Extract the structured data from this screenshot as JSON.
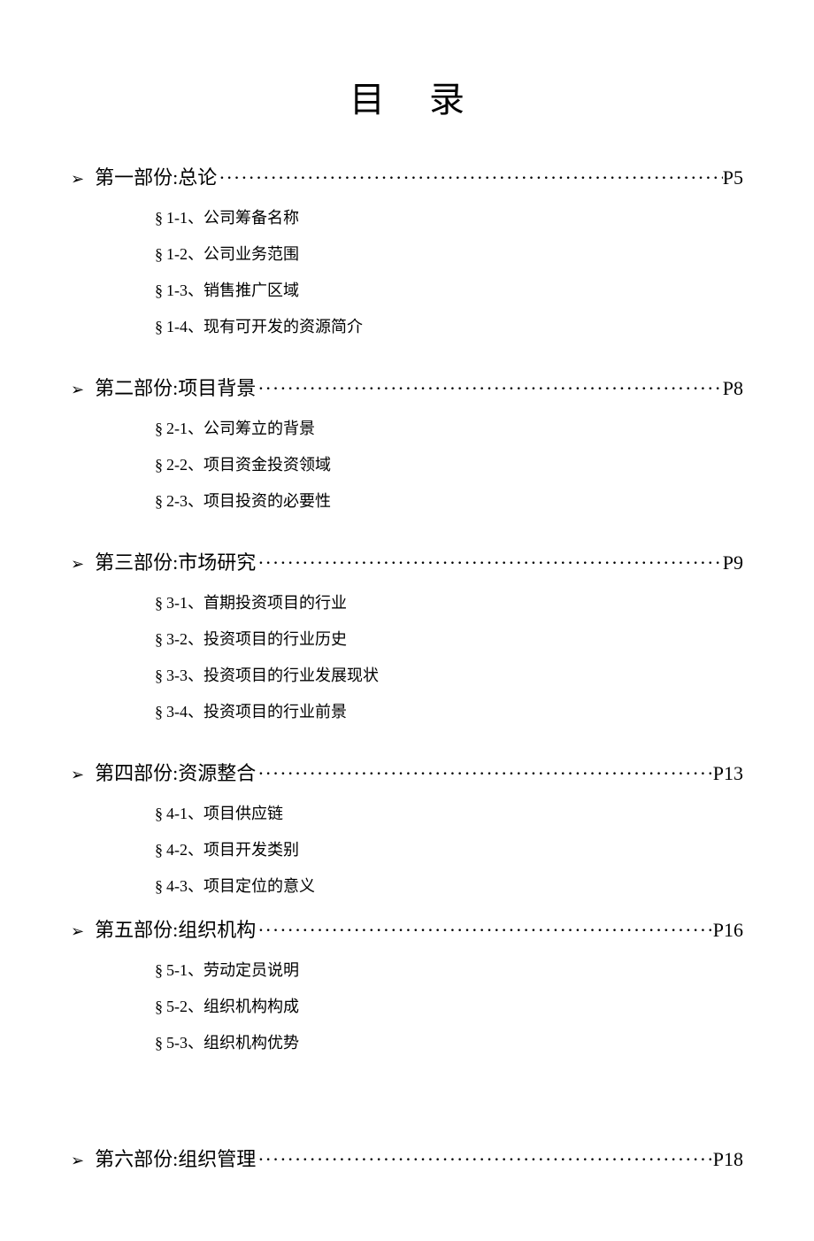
{
  "title": "目录",
  "leader_char": "·",
  "bullet_char": "➢",
  "section_mark": "§",
  "colors": {
    "background": "#ffffff",
    "text": "#000000"
  },
  "typography": {
    "title_fontsize": 40,
    "section_fontsize": 22,
    "sub_fontsize": 18,
    "font_family": "SimSun"
  },
  "sections": [
    {
      "label": "第一部份:总论",
      "page": "P5",
      "compact": false,
      "large_gap": false,
      "items": [
        "1-1、公司筹备名称",
        "1-2、公司业务范围",
        "1-3、销售推广区域",
        "1-4、现有可开发的资源简介"
      ]
    },
    {
      "label": "第二部份:项目背景",
      "page": "P8",
      "compact": false,
      "large_gap": false,
      "items": [
        "2-1、公司筹立的背景",
        "2-2、项目资金投资领域",
        "2-3、项目投资的必要性"
      ]
    },
    {
      "label": "第三部份:市场研究",
      "page": "P9",
      "compact": false,
      "large_gap": false,
      "items": [
        "3-1、首期投资项目的行业",
        "3-2、投资项目的行业历史",
        "3-3、投资项目的行业发展现状",
        "3-4、投资项目的行业前景"
      ]
    },
    {
      "label": "第四部份:资源整合",
      "page": "P13",
      "compact": true,
      "large_gap": false,
      "items": [
        "4-1、项目供应链",
        "4-2、项目开发类别",
        "4-3、项目定位的意义"
      ]
    },
    {
      "label": "第五部份:组织机构",
      "page": "P16",
      "compact": true,
      "large_gap": true,
      "items": [
        "5-1、劳动定员说明",
        "5-2、组织机构构成",
        "5-3、组织机构优势"
      ]
    },
    {
      "label": "第六部份:组织管理",
      "page": "P18",
      "compact": false,
      "large_gap": false,
      "items": []
    }
  ]
}
